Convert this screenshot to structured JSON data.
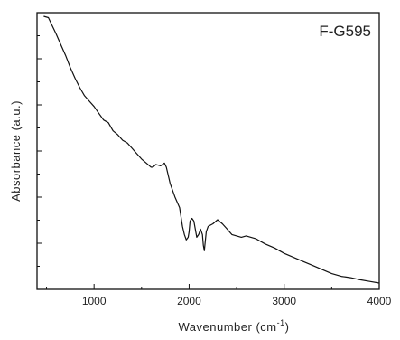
{
  "chart_data": {
    "type": "line",
    "panel_label": "F-G595",
    "xlabel_main": "Wavenumber (cm",
    "xlabel_sup": "-1",
    "xlabel_tail": ")",
    "ylabel": "Absorbance (a.u.)",
    "xlim": [
      400,
      4000
    ],
    "ylim": [
      0,
      1
    ],
    "x_ticks": [
      1000,
      2000,
      3000,
      4000
    ],
    "y_tick_labels_shown": false,
    "grid": false,
    "legend": "none",
    "line_color": "#111111",
    "series": [
      {
        "x": [
          470,
          520,
          560,
          600,
          650,
          700,
          750,
          800,
          850,
          900,
          950,
          1000,
          1050,
          1100,
          1150,
          1200,
          1250,
          1300,
          1350,
          1400,
          1450,
          1500,
          1550,
          1600,
          1620,
          1650,
          1700,
          1740,
          1760,
          1800,
          1850,
          1900,
          1930,
          1950,
          1970,
          1990,
          2000,
          2010,
          2030,
          2050,
          2080,
          2100,
          2120,
          2140,
          2150,
          2160,
          2180,
          2200,
          2250,
          2300,
          2350,
          2400,
          2450,
          2500,
          2550,
          2600,
          2650,
          2700,
          2800,
          2900,
          3000,
          3100,
          3200,
          3300,
          3400,
          3500,
          3600,
          3700,
          3800,
          3900,
          4000
        ],
        "y": [
          1.0,
          0.995,
          0.965,
          0.935,
          0.895,
          0.855,
          0.81,
          0.77,
          0.735,
          0.705,
          0.685,
          0.665,
          0.64,
          0.615,
          0.605,
          0.575,
          0.56,
          0.54,
          0.53,
          0.51,
          0.49,
          0.47,
          0.455,
          0.44,
          0.44,
          0.45,
          0.445,
          0.455,
          0.44,
          0.38,
          0.33,
          0.29,
          0.22,
          0.19,
          0.17,
          0.18,
          0.2,
          0.24,
          0.25,
          0.24,
          0.18,
          0.19,
          0.21,
          0.19,
          0.15,
          0.13,
          0.2,
          0.22,
          0.23,
          0.245,
          0.23,
          0.21,
          0.19,
          0.185,
          0.18,
          0.185,
          0.18,
          0.175,
          0.155,
          0.14,
          0.12,
          0.105,
          0.09,
          0.075,
          0.06,
          0.045,
          0.035,
          0.03,
          0.022,
          0.016,
          0.01
        ]
      }
    ]
  }
}
